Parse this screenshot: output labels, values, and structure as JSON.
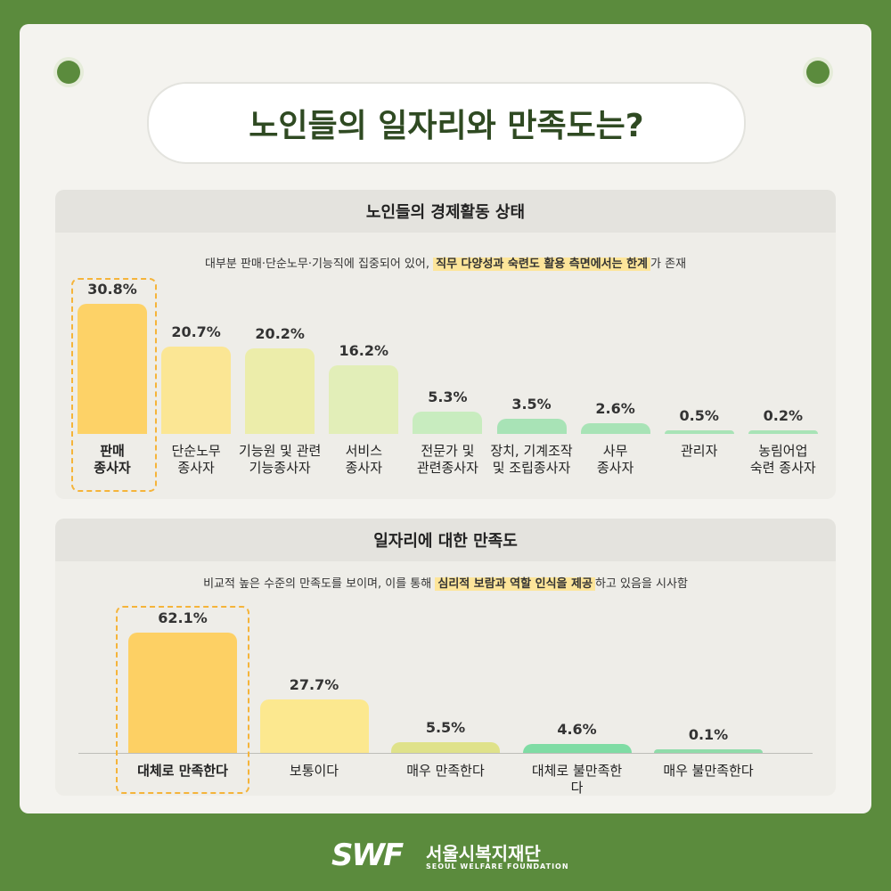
{
  "header": {
    "title": "노인들의 일자리와 만족도는?"
  },
  "chart_data": [
    {
      "type": "bar",
      "title": "노인들의 경제활동 상태",
      "subtitle": {
        "before": "대부분 판매·단순노무·기능직에 집중되어 있어, ",
        "highlight": "직무 다양성과 숙련도 활용 측면에서는 한계",
        "after": "가 존재"
      },
      "categories": [
        "판매\n종사자",
        "단순노무\n종사자",
        "기능원 및 관련\n기능종사자",
        "서비스\n종사자",
        "전문가 및\n관련종사자",
        "장치, 기계조작\n및 조립종사자",
        "사무\n종사자",
        "관리자",
        "농림어업\n숙련 종사자"
      ],
      "values": [
        30.8,
        20.7,
        20.2,
        16.2,
        5.3,
        3.5,
        2.6,
        0.5,
        0.2
      ],
      "value_labels": [
        "30.8%",
        "20.7%",
        "20.2%",
        "16.2%",
        "5.3%",
        "3.5%",
        "2.6%",
        "0.5%",
        "0.2%"
      ],
      "colors": [
        "#fdd267",
        "#fbe694",
        "#ecedaa",
        "#e2eeb8",
        "#c8ecbf",
        "#a8e3b6",
        "#a8e3b6",
        "#a8e3b6",
        "#a8e3b6"
      ],
      "highlight": 0
    },
    {
      "type": "bar",
      "title": "일자리에 대한 만족도",
      "subtitle": {
        "before": "비교적 높은 수준의 만족도를 보이며, 이를 통해 ",
        "highlight": "심리적 보람과 역할 인식을 제공",
        "after": "하고 있음을 시사함"
      },
      "categories": [
        "대체로 만족한다",
        "보통이다",
        "매우 만족한다",
        "대체로 불만족한다",
        "매우 불만족한다"
      ],
      "values": [
        62.1,
        27.7,
        5.5,
        4.6,
        0.1
      ],
      "value_labels": [
        "62.1%",
        "27.7%",
        "5.5%",
        "4.6%",
        "0.1%"
      ],
      "colors": [
        "#fdd064",
        "#fce88f",
        "#dfe28a",
        "#7fdca4",
        "#8fdcaa"
      ],
      "highlight": 0
    }
  ],
  "footer": {
    "logo": "SWF",
    "name": "서울시복지재단",
    "english": "SEOUL WELFARE FOUNDATION"
  }
}
